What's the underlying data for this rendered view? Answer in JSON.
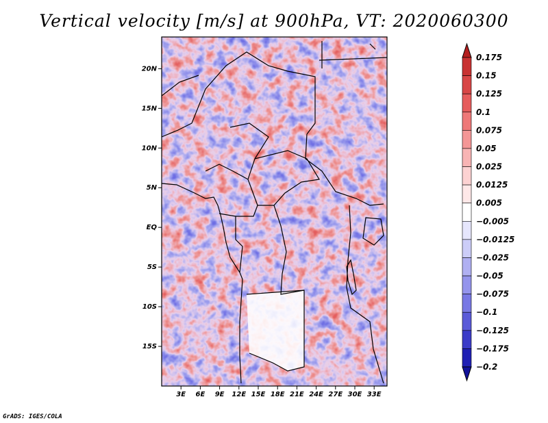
{
  "title": "Vertical velocity [m/s] at 900hPa, VT: 2020060300",
  "credit": "GrADS: IGES/COLA",
  "map": {
    "variable": "Vertical velocity",
    "units": "m/s",
    "level": "900hPa",
    "valid_time": "2020060300",
    "lat_range": [
      -20,
      24
    ],
    "lon_range": [
      0,
      35
    ],
    "lat_ticks": [
      {
        "value": 20,
        "label": "20N"
      },
      {
        "value": 15,
        "label": "15N"
      },
      {
        "value": 10,
        "label": "10N"
      },
      {
        "value": 5,
        "label": "5N"
      },
      {
        "value": 0,
        "label": "EQ"
      },
      {
        "value": -5,
        "label": "5S"
      },
      {
        "value": -10,
        "label": "10S"
      },
      {
        "value": -15,
        "label": "15S"
      }
    ],
    "lon_ticks": [
      {
        "value": 3,
        "label": "3E"
      },
      {
        "value": 6,
        "label": "6E"
      },
      {
        "value": 9,
        "label": "9E"
      },
      {
        "value": 12,
        "label": "12E"
      },
      {
        "value": 15,
        "label": "15E"
      },
      {
        "value": 18,
        "label": "18E"
      },
      {
        "value": 21,
        "label": "21E"
      },
      {
        "value": 24,
        "label": "24E"
      },
      {
        "value": 27,
        "label": "27E"
      },
      {
        "value": 30,
        "label": "30E"
      },
      {
        "value": 33,
        "label": "33E"
      }
    ]
  },
  "colorbar": {
    "labels": [
      "0.175",
      "0.15",
      "0.125",
      "0.1",
      "0.075",
      "0.05",
      "0.025",
      "0.0125",
      "0.005",
      "-0.005",
      "-0.0125",
      "-0.025",
      "-0.05",
      "-0.075",
      "-0.1",
      "-0.125",
      "-0.175",
      "-0.2"
    ],
    "colors": [
      "#b41e1e",
      "#c83232",
      "#d84646",
      "#e65c5c",
      "#ee7878",
      "#f49696",
      "#f8b4b4",
      "#fcd2d2",
      "#fee8e8",
      "#ffffff",
      "#e6e6fc",
      "#cccdf8",
      "#b0b0f2",
      "#9494ec",
      "#7878e4",
      "#5a5ad8",
      "#3c3cc8",
      "#2020b4",
      "#12129a"
    ]
  }
}
